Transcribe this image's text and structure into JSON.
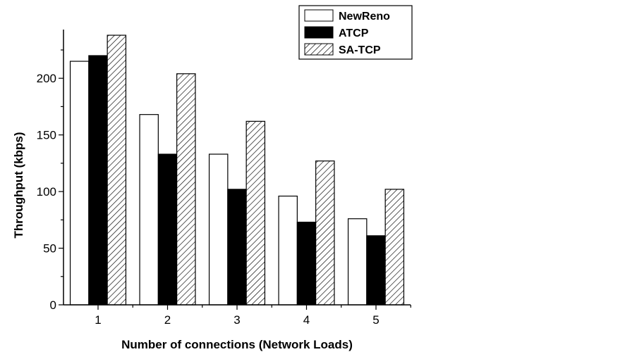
{
  "chart_data": {
    "type": "bar",
    "title": "",
    "xlabel": "Number of connections (Network Loads)",
    "ylabel": "Throughput (kbps)",
    "categories": [
      "1",
      "2",
      "3",
      "4",
      "5"
    ],
    "ylim": [
      0,
      243
    ],
    "yticks": [
      0,
      50,
      100,
      150,
      200
    ],
    "grid": false,
    "legend_position": "top-right",
    "series": [
      {
        "name": "NewReno",
        "fill": "white",
        "values": [
          215,
          168,
          133,
          96,
          76
        ]
      },
      {
        "name": "ATCP",
        "fill": "black",
        "values": [
          220,
          133,
          102,
          73,
          61
        ]
      },
      {
        "name": "SA-TCP",
        "fill": "hatched",
        "values": [
          238,
          204,
          162,
          127,
          102
        ]
      }
    ]
  }
}
